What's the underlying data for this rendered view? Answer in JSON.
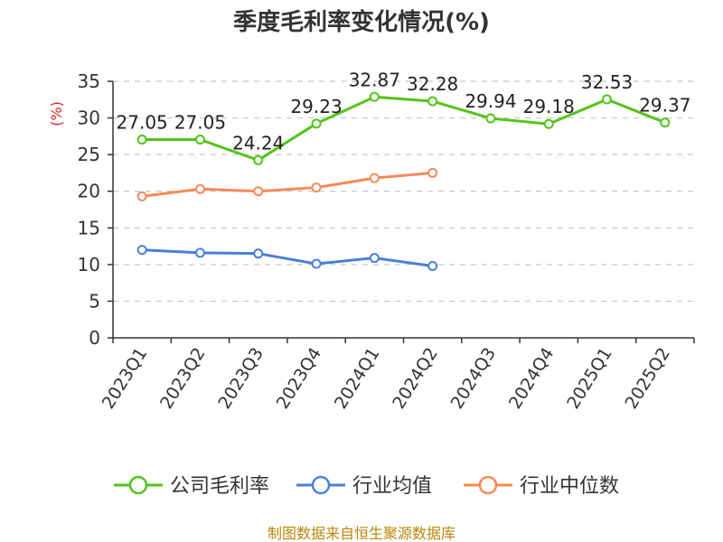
{
  "chart_data": {
    "type": "line",
    "title": "季度毛利率变化情况(%)",
    "ylabel": "(%)",
    "xlabel": "",
    "ylim": [
      0,
      35
    ],
    "yticks": [
      0,
      5,
      10,
      15,
      20,
      25,
      30,
      35
    ],
    "grid": true,
    "legend_position": "bottom",
    "categories": [
      "2023Q1",
      "2023Q2",
      "2023Q3",
      "2023Q4",
      "2024Q1",
      "2024Q2",
      "2024Q3",
      "2024Q4",
      "2025Q1",
      "2025Q2"
    ],
    "series": [
      {
        "name": "公司毛利率",
        "color": "#52c41a",
        "values": [
          27.05,
          27.05,
          24.24,
          29.23,
          32.87,
          32.28,
          29.94,
          29.18,
          32.53,
          29.37
        ],
        "labels": [
          "27.05",
          "27.05",
          "24.24",
          "29.23",
          "32.87",
          "32.28",
          "29.94",
          "29.18",
          "32.53",
          "29.37"
        ]
      },
      {
        "name": "行业均值",
        "color": "#4a7fd8",
        "values": [
          12.0,
          11.6,
          11.5,
          10.1,
          10.9,
          9.8,
          null,
          null,
          null,
          null
        ]
      },
      {
        "name": "行业中位数",
        "color": "#f5895a",
        "values": [
          19.3,
          20.3,
          20.0,
          20.5,
          21.8,
          22.5,
          null,
          null,
          null,
          null
        ]
      }
    ]
  },
  "footer": "制图数据来自恒生聚源数据库"
}
